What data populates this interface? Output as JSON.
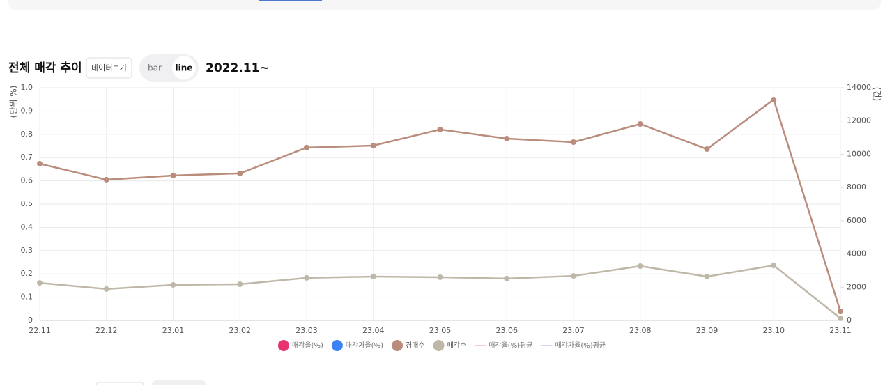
{
  "header": {
    "title": "전체 매각 추이",
    "button": "데이터보기",
    "toggle": [
      "bar",
      "line"
    ],
    "active": 1,
    "period": "2022.11~"
  },
  "chart_data": {
    "type": "line",
    "y_label": "(단위 %)",
    "y2_label": "(건)",
    "categories": [
      "22.11",
      "22.12",
      "23.01",
      "23.02",
      "23.03",
      "23.04",
      "23.05",
      "23.06",
      "23.07",
      "23.08",
      "23.09",
      "23.10",
      "23.11"
    ],
    "ylim": [
      0,
      1
    ],
    "yticks": [
      0,
      0.1,
      0.2,
      0.3,
      0.4,
      0.5,
      0.6,
      0.7,
      0.8,
      0.9,
      {
        "value": 1,
        "label": "1.0"
      }
    ],
    "y2lim": [
      0,
      14000
    ],
    "y2ticks": [
      0,
      2000,
      4000,
      6000,
      8000,
      10000,
      12000,
      14000
    ],
    "grid": true,
    "legend": "bottom",
    "series": [
      {
        "name": "매각율(%)",
        "color": "#e8336f",
        "hidden": true,
        "marker": "circle"
      },
      {
        "name": "매각가율(%)",
        "color": "#3b82f6",
        "hidden": true,
        "marker": "circle"
      },
      {
        "name": "경매수",
        "color": "#b98c7c",
        "axis": "y2",
        "marker": "circle",
        "values": [
          9430,
          8470,
          8720,
          8850,
          10400,
          10520,
          11490,
          10940,
          10730,
          11820,
          10310,
          13290,
          540
        ]
      },
      {
        "name": "매각수",
        "color": "#bfb8a8",
        "axis": "y2",
        "marker": "circle",
        "values": [
          2260,
          1890,
          2140,
          2180,
          2560,
          2640,
          2600,
          2520,
          2680,
          3270,
          2640,
          3310,
          130
        ]
      },
      {
        "name": "매각율(%)평균",
        "color": "#e59a9a",
        "hidden": true,
        "marker": "line"
      },
      {
        "name": "매각가율(%)평균",
        "color": "#a8a8f0",
        "hidden": true,
        "marker": "line"
      }
    ]
  }
}
